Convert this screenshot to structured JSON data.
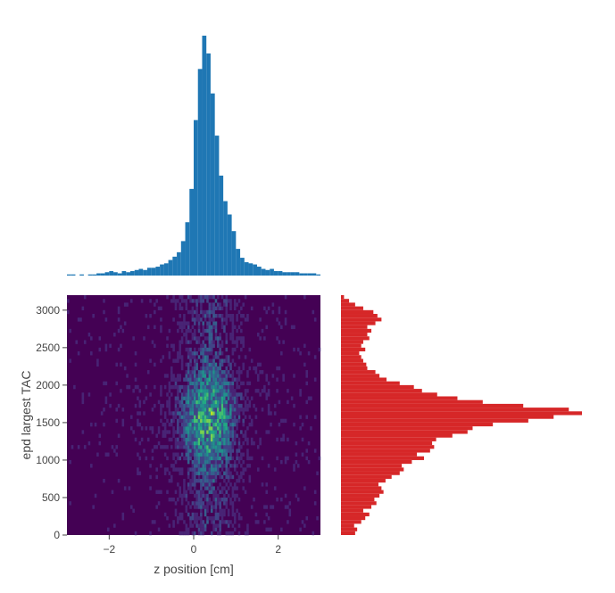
{
  "chart_data": [
    {
      "type": "heatmap",
      "panel": "main",
      "title": "",
      "xlabel": "z position [cm]",
      "ylabel": "epd largest TAC",
      "xlim": [
        -3,
        3
      ],
      "ylim": [
        0,
        3200
      ],
      "x_ticks": [
        -2,
        0,
        2
      ],
      "x_tick_labels": [
        "−2",
        "0",
        "2"
      ],
      "y_ticks": [
        0,
        500,
        1000,
        1500,
        2000,
        2500,
        3000
      ],
      "y_tick_labels": [
        "0",
        "500",
        "1000",
        "1500",
        "2000",
        "2500",
        "3000"
      ],
      "colorscale": "Viridis",
      "background_color": "#440154",
      "peak_location": {
        "x": 0.35,
        "y": 1550
      },
      "grid": false
    },
    {
      "type": "bar",
      "panel": "top-marginal",
      "orientation": "vertical",
      "xlim": [
        -3,
        3
      ],
      "color": "#1f77b4",
      "x": [
        -2.95,
        -2.85,
        -2.75,
        -2.65,
        -2.55,
        -2.45,
        -2.35,
        -2.25,
        -2.15,
        -2.05,
        -1.95,
        -1.85,
        -1.75,
        -1.65,
        -1.55,
        -1.45,
        -1.35,
        -1.25,
        -1.15,
        -1.05,
        -0.95,
        -0.85,
        -0.75,
        -0.65,
        -0.55,
        -0.45,
        -0.35,
        -0.25,
        -0.15,
        -0.05,
        0.05,
        0.15,
        0.25,
        0.35,
        0.45,
        0.55,
        0.65,
        0.75,
        0.85,
        0.95,
        1.05,
        1.15,
        1.25,
        1.35,
        1.45,
        1.55,
        1.65,
        1.75,
        1.85,
        1.95,
        2.05,
        2.15,
        2.25,
        2.35,
        2.45,
        2.55,
        2.65,
        2.75,
        2.85,
        2.95
      ],
      "values": [
        1,
        1,
        0,
        1,
        0,
        1,
        1,
        2,
        2,
        3,
        4,
        3,
        2,
        4,
        3,
        4,
        5,
        6,
        5,
        7,
        7,
        8,
        10,
        11,
        14,
        17,
        21,
        31,
        48,
        78,
        140,
        186,
        216,
        200,
        164,
        126,
        90,
        67,
        55,
        40,
        24,
        16,
        12,
        11,
        10,
        8,
        6,
        5,
        6,
        4,
        4,
        3,
        3,
        3,
        3,
        2,
        2,
        2,
        2,
        1
      ]
    },
    {
      "type": "bar",
      "panel": "right-marginal",
      "orientation": "horizontal",
      "ylim": [
        0,
        3200
      ],
      "color": "#d62728",
      "y": [
        25,
        75,
        125,
        175,
        225,
        275,
        325,
        375,
        425,
        475,
        525,
        575,
        625,
        675,
        725,
        775,
        825,
        875,
        925,
        975,
        1025,
        1075,
        1125,
        1175,
        1225,
        1275,
        1325,
        1375,
        1425,
        1475,
        1525,
        1575,
        1625,
        1675,
        1725,
        1775,
        1825,
        1875,
        1925,
        1975,
        2025,
        2075,
        2125,
        2175,
        2225,
        2275,
        2325,
        2375,
        2425,
        2475,
        2525,
        2575,
        2625,
        2675,
        2725,
        2775,
        2825,
        2875,
        2925,
        2975,
        3025,
        3075,
        3125,
        3175
      ],
      "values": [
        14,
        16,
        13,
        20,
        24,
        28,
        22,
        30,
        35,
        33,
        38,
        42,
        40,
        37,
        44,
        50,
        58,
        62,
        60,
        70,
        82,
        75,
        88,
        92,
        90,
        94,
        110,
        125,
        130,
        150,
        185,
        210,
        238,
        225,
        180,
        140,
        115,
        95,
        80,
        72,
        58,
        45,
        38,
        34,
        26,
        25,
        22,
        20,
        18,
        24,
        20,
        22,
        28,
        26,
        30,
        26,
        34,
        40,
        36,
        32,
        22,
        14,
        8,
        3
      ]
    }
  ]
}
